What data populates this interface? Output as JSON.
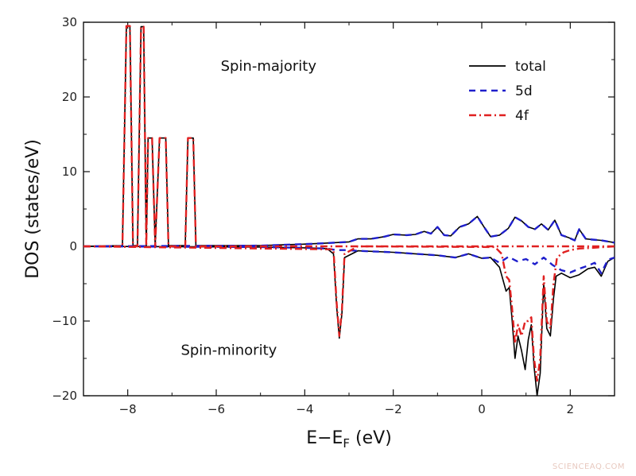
{
  "chart_data": {
    "type": "line",
    "xlabel": "E−E",
    "xlabel_sub": "F",
    "xlabel_unit": " (eV)",
    "ylabel": "DOS (states/eV)",
    "xlim": [
      -9,
      3
    ],
    "ylim": [
      -20,
      30
    ],
    "xticks": [
      -8,
      -6,
      -4,
      -2,
      0,
      2
    ],
    "yticks": [
      -20,
      -10,
      0,
      10,
      20,
      30
    ],
    "annotations": [
      {
        "text": "Spin-majority",
        "x": -5.9,
        "y": 23.5
      },
      {
        "text": "Spin-minority",
        "x": -6.8,
        "y": -14.5
      }
    ],
    "legend_position": "top-right",
    "series": [
      {
        "name": "total",
        "color": "#000000",
        "dash": "solid",
        "up": [
          [
            -9,
            0
          ],
          [
            -8.12,
            0.1
          ],
          [
            -8.03,
            29.5
          ],
          [
            -7.95,
            29.5
          ],
          [
            -7.88,
            0.1
          ],
          [
            -7.78,
            0.1
          ],
          [
            -7.7,
            29.4
          ],
          [
            -7.64,
            29.4
          ],
          [
            -7.58,
            0.1
          ],
          [
            -7.54,
            14.5
          ],
          [
            -7.45,
            14.5
          ],
          [
            -7.38,
            0.1
          ],
          [
            -7.28,
            14.5
          ],
          [
            -7.14,
            14.5
          ],
          [
            -7.08,
            0.1
          ],
          [
            -6.7,
            0.1
          ],
          [
            -6.64,
            14.5
          ],
          [
            -6.52,
            14.5
          ],
          [
            -6.46,
            0.1
          ],
          [
            -5,
            0.1
          ],
          [
            -4.5,
            0.2
          ],
          [
            -4,
            0.3
          ],
          [
            -3.6,
            0.4
          ],
          [
            -3.3,
            0.5
          ],
          [
            -3.0,
            0.6
          ],
          [
            -2.8,
            1.0
          ],
          [
            -2.5,
            1.0
          ],
          [
            -2.2,
            1.3
          ],
          [
            -2.0,
            1.6
          ],
          [
            -1.7,
            1.5
          ],
          [
            -1.5,
            1.6
          ],
          [
            -1.3,
            2.0
          ],
          [
            -1.15,
            1.7
          ],
          [
            -1.0,
            2.6
          ],
          [
            -0.85,
            1.5
          ],
          [
            -0.7,
            1.4
          ],
          [
            -0.5,
            2.6
          ],
          [
            -0.3,
            3.0
          ],
          [
            -0.1,
            4.0
          ],
          [
            0.05,
            2.6
          ],
          [
            0.2,
            1.3
          ],
          [
            0.4,
            1.5
          ],
          [
            0.6,
            2.4
          ],
          [
            0.75,
            3.9
          ],
          [
            0.9,
            3.4
          ],
          [
            1.05,
            2.6
          ],
          [
            1.2,
            2.3
          ],
          [
            1.35,
            3.0
          ],
          [
            1.5,
            2.2
          ],
          [
            1.65,
            3.5
          ],
          [
            1.8,
            1.5
          ],
          [
            1.95,
            1.2
          ],
          [
            2.1,
            0.8
          ],
          [
            2.2,
            2.3
          ],
          [
            2.35,
            1.0
          ],
          [
            2.5,
            0.9
          ],
          [
            2.7,
            0.8
          ],
          [
            3,
            0.5
          ]
        ],
        "down": [
          [
            -9,
            0
          ],
          [
            -5,
            -0.1
          ],
          [
            -4,
            -0.2
          ],
          [
            -3.5,
            -0.3
          ],
          [
            -3.35,
            -1.0
          ],
          [
            -3.28,
            -8
          ],
          [
            -3.22,
            -12.3
          ],
          [
            -3.16,
            -9
          ],
          [
            -3.1,
            -1.5
          ],
          [
            -2.8,
            -0.6
          ],
          [
            -2,
            -0.8
          ],
          [
            -1.5,
            -1.0
          ],
          [
            -1.0,
            -1.2
          ],
          [
            -0.6,
            -1.5
          ],
          [
            -0.3,
            -1.0
          ],
          [
            0.0,
            -1.6
          ],
          [
            0.2,
            -1.5
          ],
          [
            0.4,
            -2.8
          ],
          [
            0.55,
            -6.0
          ],
          [
            0.62,
            -5.5
          ],
          [
            0.68,
            -9.5
          ],
          [
            0.75,
            -15
          ],
          [
            0.82,
            -12
          ],
          [
            0.9,
            -14
          ],
          [
            0.98,
            -16.5
          ],
          [
            1.05,
            -12.5
          ],
          [
            1.12,
            -10.5
          ],
          [
            1.18,
            -16
          ],
          [
            1.25,
            -20
          ],
          [
            1.32,
            -17
          ],
          [
            1.4,
            -5
          ],
          [
            1.47,
            -11
          ],
          [
            1.55,
            -12
          ],
          [
            1.62,
            -7
          ],
          [
            1.68,
            -4
          ],
          [
            1.8,
            -3.6
          ],
          [
            2.0,
            -4.2
          ],
          [
            2.2,
            -3.8
          ],
          [
            2.4,
            -3.0
          ],
          [
            2.55,
            -2.8
          ],
          [
            2.7,
            -4
          ],
          [
            2.85,
            -2
          ],
          [
            3,
            -1.5
          ]
        ]
      },
      {
        "name": "5d",
        "color": "#1f1fcc",
        "dash": "8,6",
        "up": [
          [
            -9,
            0
          ],
          [
            -5,
            0.1
          ],
          [
            -4.5,
            0.2
          ],
          [
            -4,
            0.3
          ],
          [
            -3.6,
            0.4
          ],
          [
            -3.3,
            0.5
          ],
          [
            -3.0,
            0.6
          ],
          [
            -2.8,
            1.0
          ],
          [
            -2.5,
            1.0
          ],
          [
            -2.2,
            1.3
          ],
          [
            -2.0,
            1.6
          ],
          [
            -1.7,
            1.5
          ],
          [
            -1.5,
            1.6
          ],
          [
            -1.3,
            2.0
          ],
          [
            -1.15,
            1.7
          ],
          [
            -1.0,
            2.6
          ],
          [
            -0.85,
            1.5
          ],
          [
            -0.7,
            1.4
          ],
          [
            -0.5,
            2.6
          ],
          [
            -0.3,
            3.0
          ],
          [
            -0.1,
            4.0
          ],
          [
            0.05,
            2.6
          ],
          [
            0.2,
            1.3
          ],
          [
            0.4,
            1.5
          ],
          [
            0.6,
            2.4
          ],
          [
            0.75,
            3.9
          ],
          [
            0.9,
            3.4
          ],
          [
            1.05,
            2.6
          ],
          [
            1.2,
            2.3
          ],
          [
            1.35,
            3.0
          ],
          [
            1.5,
            2.2
          ],
          [
            1.65,
            3.5
          ],
          [
            1.8,
            1.5
          ],
          [
            1.95,
            1.2
          ],
          [
            2.1,
            0.8
          ],
          [
            2.2,
            2.3
          ],
          [
            2.35,
            1.0
          ],
          [
            2.5,
            0.9
          ],
          [
            2.7,
            0.8
          ],
          [
            3,
            0.5
          ]
        ],
        "down": [
          [
            -9,
            0
          ],
          [
            -5,
            -0.1
          ],
          [
            -4,
            -0.2
          ],
          [
            -3.5,
            -0.3
          ],
          [
            -3.3,
            -0.5
          ],
          [
            -3.1,
            -0.5
          ],
          [
            -2.8,
            -0.6
          ],
          [
            -2,
            -0.8
          ],
          [
            -1.5,
            -1.0
          ],
          [
            -1.0,
            -1.2
          ],
          [
            -0.6,
            -1.5
          ],
          [
            -0.3,
            -1.0
          ],
          [
            0.0,
            -1.6
          ],
          [
            0.2,
            -1.5
          ],
          [
            0.4,
            -2.2
          ],
          [
            0.6,
            -1.4
          ],
          [
            0.8,
            -2.0
          ],
          [
            1.0,
            -1.7
          ],
          [
            1.2,
            -2.4
          ],
          [
            1.4,
            -1.5
          ],
          [
            1.6,
            -2.5
          ],
          [
            1.8,
            -3.2
          ],
          [
            2.0,
            -3.5
          ],
          [
            2.2,
            -3.0
          ],
          [
            2.4,
            -2.6
          ],
          [
            2.55,
            -2.2
          ],
          [
            2.7,
            -3.6
          ],
          [
            2.85,
            -1.8
          ],
          [
            3,
            -1.5
          ]
        ]
      },
      {
        "name": "4f",
        "color": "#e02020",
        "dash": "9,4,2,4",
        "up": [
          [
            -9,
            0
          ],
          [
            -8.12,
            0
          ],
          [
            -8.03,
            29.5
          ],
          [
            -7.95,
            29.5
          ],
          [
            -7.88,
            0
          ],
          [
            -7.78,
            0
          ],
          [
            -7.7,
            29.4
          ],
          [
            -7.64,
            29.4
          ],
          [
            -7.58,
            0
          ],
          [
            -7.54,
            14.5
          ],
          [
            -7.45,
            14.5
          ],
          [
            -7.38,
            0
          ],
          [
            -7.28,
            14.5
          ],
          [
            -7.14,
            14.5
          ],
          [
            -7.08,
            0
          ],
          [
            -6.7,
            0
          ],
          [
            -6.64,
            14.5
          ],
          [
            -6.52,
            14.5
          ],
          [
            -6.46,
            0
          ],
          [
            3,
            0
          ]
        ],
        "down": [
          [
            -9,
            0
          ],
          [
            -3.35,
            -0.4
          ],
          [
            -3.28,
            -7.5
          ],
          [
            -3.22,
            -12
          ],
          [
            -3.16,
            -8.5
          ],
          [
            -3.1,
            -1.0
          ],
          [
            -2.8,
            0
          ],
          [
            0.3,
            -0.1
          ],
          [
            0.45,
            -1.0
          ],
          [
            0.55,
            -4.0
          ],
          [
            0.62,
            -4.5
          ],
          [
            0.68,
            -8.0
          ],
          [
            0.75,
            -13
          ],
          [
            0.82,
            -10.5
          ],
          [
            0.9,
            -12
          ],
          [
            0.98,
            -10
          ],
          [
            1.05,
            -10
          ],
          [
            1.12,
            -9.5
          ],
          [
            1.18,
            -15
          ],
          [
            1.25,
            -18
          ],
          [
            1.32,
            -15
          ],
          [
            1.4,
            -4
          ],
          [
            1.47,
            -10
          ],
          [
            1.55,
            -11
          ],
          [
            1.62,
            -5
          ],
          [
            1.7,
            -1.5
          ],
          [
            1.85,
            -0.8
          ],
          [
            2.0,
            -0.5
          ],
          [
            2.2,
            -0.3
          ],
          [
            2.5,
            -0.2
          ],
          [
            3,
            0
          ]
        ]
      }
    ]
  },
  "watermark": "SCIENCEAQ.COM"
}
